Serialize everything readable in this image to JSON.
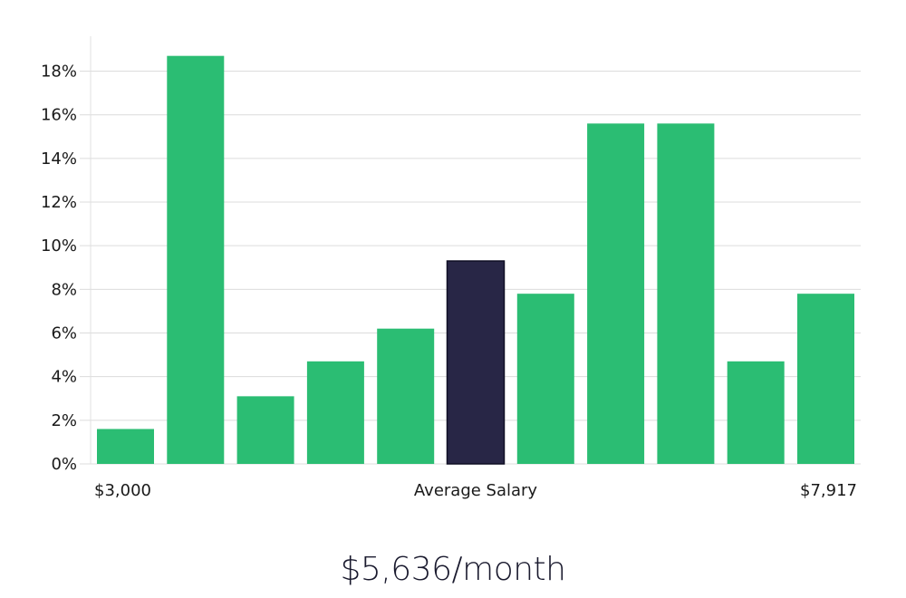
{
  "chart_data": {
    "type": "bar",
    "values": [
      1.6,
      18.7,
      3.1,
      4.7,
      6.2,
      9.3,
      7.8,
      15.6,
      15.6,
      4.7,
      7.8
    ],
    "highlight_index": 5,
    "ylim": [
      0,
      19.6
    ],
    "yticks": [
      0,
      2,
      4,
      6,
      8,
      10,
      12,
      14,
      16,
      18
    ],
    "ytick_format": "%",
    "xlabel_left": "$3,000",
    "xlabel_center": "Average Salary",
    "xlabel_right": "$7,917",
    "grid": true,
    "legend": "none"
  },
  "colors": {
    "bar": "#2bbd73",
    "bar_highlight": "#282646",
    "highlight_border": "#0f0e24"
  },
  "caption": "$5,636/month"
}
